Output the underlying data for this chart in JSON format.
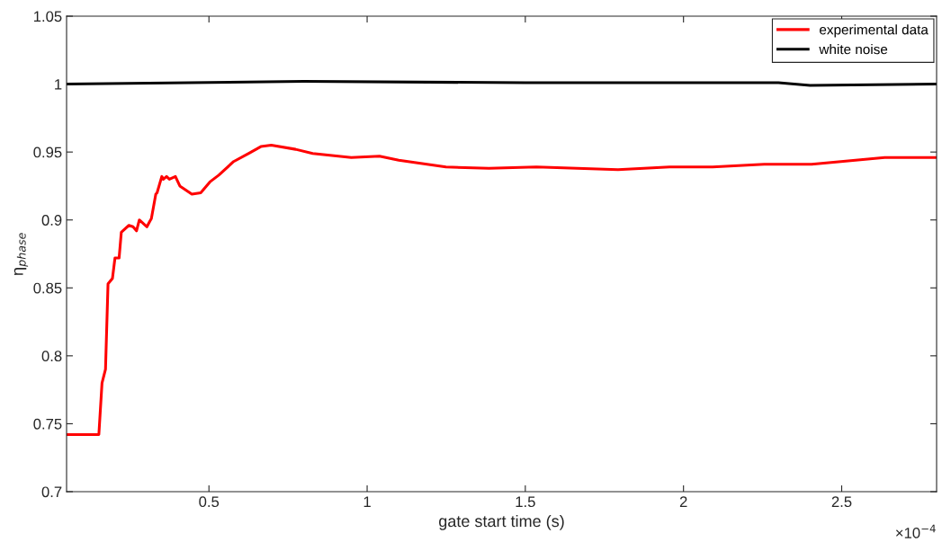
{
  "chart_data": {
    "type": "line",
    "xlabel": "gate start time (s)",
    "ylabel": "η$_{phase}$",
    "xlim": [
      0.05,
      2.8
    ],
    "xticks": [
      0.5,
      1,
      1.5,
      2,
      2.5
    ],
    "ylim": [
      0.7,
      1.05
    ],
    "yticks": [
      0.7,
      0.75,
      0.8,
      0.85,
      0.9,
      0.95,
      1,
      1.05
    ],
    "grid": false,
    "legend": "top right",
    "marker": "none",
    "line_style": "solid",
    "annotations": [
      "×10$^{−4}$"
    ],
    "series": [
      {
        "name": "experimental data",
        "color": "#ff0000",
        "x": [
          0.05,
          0.152,
          0.162,
          0.173,
          0.181,
          0.195,
          0.203,
          0.216,
          0.223,
          0.247,
          0.26,
          0.271,
          0.28,
          0.304,
          0.313,
          0.318,
          0.332,
          0.336,
          0.351,
          0.356,
          0.366,
          0.375,
          0.394,
          0.408,
          0.446,
          0.474,
          0.503,
          0.531,
          0.578,
          0.626,
          0.664,
          0.697,
          0.774,
          0.828,
          0.95,
          1.039,
          1.1,
          1.249,
          1.385,
          1.535,
          1.793,
          1.956,
          2.092,
          2.255,
          2.405,
          2.636,
          2.8
        ],
        "values": [
          0.742,
          0.742,
          0.78,
          0.79,
          0.853,
          0.857,
          0.872,
          0.872,
          0.891,
          0.896,
          0.895,
          0.892,
          0.9,
          0.895,
          0.899,
          0.901,
          0.919,
          0.92,
          0.932,
          0.93,
          0.932,
          0.93,
          0.932,
          0.925,
          0.919,
          0.92,
          0.928,
          0.933,
          0.943,
          0.949,
          0.954,
          0.955,
          0.952,
          0.949,
          0.946,
          0.947,
          0.944,
          0.939,
          0.938,
          0.939,
          0.937,
          0.939,
          0.939,
          0.941,
          0.941,
          0.946,
          0.946
        ]
      },
      {
        "name": "white noise",
        "color": "#000000",
        "x": [
          0.05,
          0.8,
          1.5,
          2.3,
          2.4,
          2.8
        ],
        "values": [
          1.0,
          1.002,
          1.001,
          1.001,
          0.999,
          1.0
        ]
      }
    ]
  }
}
